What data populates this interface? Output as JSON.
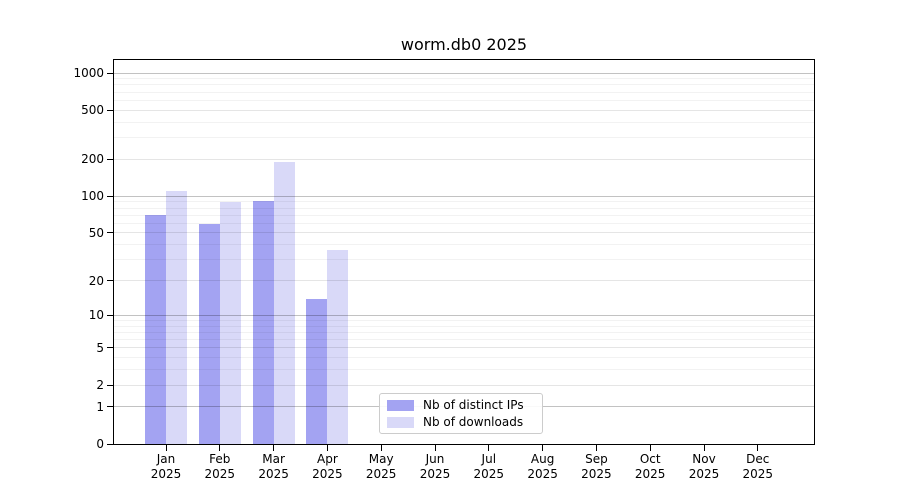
{
  "figure": {
    "title": "worm.db0 2025"
  },
  "chart_data": {
    "type": "bar",
    "title": "worm.db0 2025",
    "categories": [
      "Jan 2025",
      "Feb 2025",
      "Mar 2025",
      "Apr 2025",
      "May 2025",
      "Jun 2025",
      "Jul 2025",
      "Aug 2025",
      "Sep 2025",
      "Oct 2025",
      "Nov 2025",
      "Dec 2025"
    ],
    "x_tick_months": [
      "Jan",
      "Feb",
      "Mar",
      "Apr",
      "May",
      "Jun",
      "Jul",
      "Aug",
      "Sep",
      "Oct",
      "Nov",
      "Dec"
    ],
    "x_tick_year": "2025",
    "series": [
      {
        "name": "Nb of distinct IPs",
        "color": "#a3a3f2",
        "values": [
          70,
          59,
          91,
          14,
          0,
          0,
          0,
          0,
          0,
          0,
          0,
          0
        ]
      },
      {
        "name": "Nb of downloads",
        "color": "#d9d9f8",
        "values": [
          110,
          90,
          190,
          36,
          0,
          0,
          0,
          0,
          0,
          0,
          0,
          0
        ]
      }
    ],
    "xlabel": "",
    "ylabel": "",
    "yscale": "log1p",
    "ylim": [
      0,
      1280
    ],
    "y_ticks": [
      0,
      1,
      2,
      5,
      10,
      20,
      50,
      100,
      200,
      500,
      1000
    ],
    "y_minor_ticks": [
      3,
      4,
      6,
      7,
      8,
      9,
      30,
      40,
      60,
      70,
      80,
      90,
      300,
      400,
      600,
      700,
      800,
      900
    ],
    "grid": true,
    "legend_position": "lower center"
  },
  "colors": {
    "bar_distinct_ips": "#a3a3f2",
    "bar_downloads": "#d9d9f8",
    "grid_major": "rgba(0,0,0,0.24)",
    "grid_mid": "rgba(0,0,0,0.10)",
    "grid_minor": "rgba(0,0,0,0.05)",
    "axis": "#000000",
    "background": "#ffffff"
  }
}
